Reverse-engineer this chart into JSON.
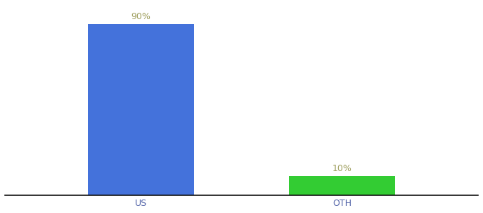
{
  "categories": [
    "US",
    "OTH"
  ],
  "values": [
    90,
    10
  ],
  "bar_colors": [
    "#4472db",
    "#33cc33"
  ],
  "label_texts": [
    "90%",
    "10%"
  ],
  "ylim": [
    0,
    100
  ],
  "background_color": "#ffffff",
  "label_color": "#a0a060",
  "tick_color": "#5566aa",
  "axis_line_color": "#111111",
  "bar_width": 0.18,
  "x_positions": [
    0.28,
    0.62
  ],
  "xlim": [
    0.05,
    0.85
  ],
  "label_fontsize": 9,
  "tick_fontsize": 9
}
